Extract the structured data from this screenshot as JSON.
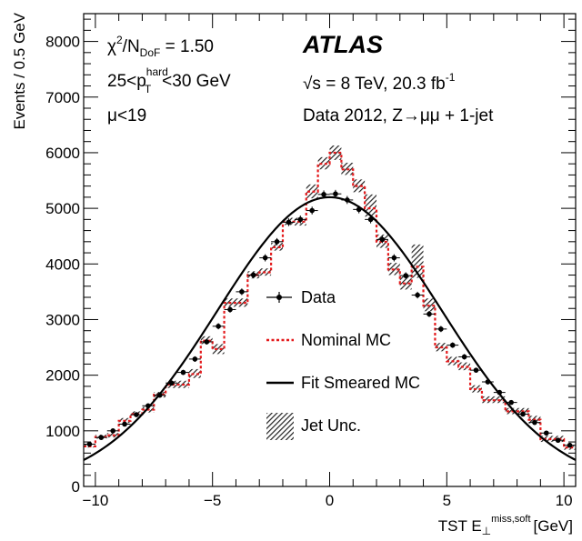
{
  "chart_data": {
    "type": "histogram",
    "xlabel_main": "TST E",
    "xlabel_sub": "⊥",
    "xlabel_sup": "miss,soft",
    "xlabel_unit": "[GeV]",
    "ylabel": "Events / 0.5 GeV",
    "xlim": [
      -10.5,
      10.5
    ],
    "ylim": [
      0,
      8500
    ],
    "x_ticks": [
      -10,
      -5,
      0,
      5,
      10
    ],
    "x_tick_labels": [
      "−10",
      "−5",
      "0",
      "5",
      "10"
    ],
    "y_ticks": [
      0,
      1000,
      2000,
      3000,
      4000,
      5000,
      6000,
      7000,
      8000
    ],
    "y_tick_labels": [
      "0",
      "1000",
      "2000",
      "3000",
      "4000",
      "5000",
      "6000",
      "7000",
      "8000"
    ],
    "bin_width": 0.5,
    "bin_centers": [
      -10.25,
      -9.75,
      -9.25,
      -8.75,
      -8.25,
      -7.75,
      -7.25,
      -6.75,
      -6.25,
      -5.75,
      -5.25,
      -4.75,
      -4.25,
      -3.75,
      -3.25,
      -2.75,
      -2.25,
      -1.75,
      -1.25,
      -0.75,
      -0.25,
      0.25,
      0.75,
      1.25,
      1.75,
      2.25,
      2.75,
      3.25,
      3.75,
      4.25,
      4.75,
      5.25,
      5.75,
      6.25,
      6.75,
      7.25,
      7.75,
      8.25,
      8.75,
      9.25,
      9.75,
      10.25
    ],
    "series": [
      {
        "name": "Data",
        "style": "points",
        "values": [
          760,
          880,
          1000,
          1120,
          1290,
          1450,
          1640,
          1860,
          2050,
          2290,
          2600,
          2880,
          3180,
          3500,
          3800,
          4110,
          4400,
          4750,
          4800,
          4960,
          5250,
          5260,
          5150,
          4980,
          4800,
          4440,
          4110,
          3790,
          3440,
          3100,
          2830,
          2540,
          2330,
          2090,
          1880,
          1690,
          1510,
          1300,
          1150,
          960,
          830,
          740
        ],
        "errors": [
          30,
          30,
          35,
          35,
          35,
          40,
          40,
          45,
          45,
          50,
          50,
          55,
          55,
          60,
          60,
          65,
          65,
          70,
          70,
          70,
          72,
          72,
          72,
          70,
          70,
          65,
          65,
          60,
          60,
          55,
          55,
          50,
          50,
          45,
          45,
          40,
          40,
          35,
          35,
          30,
          30,
          30
        ],
        "color": "#000000"
      },
      {
        "name": "Nominal MC",
        "style": "step",
        "values": [
          720,
          890,
          920,
          1180,
          1300,
          1380,
          1650,
          1830,
          1830,
          2020,
          2620,
          2470,
          3300,
          3300,
          3800,
          3850,
          4300,
          4760,
          4760,
          5300,
          5800,
          6000,
          5700,
          5400,
          5000,
          4400,
          3900,
          3650,
          3950,
          3250,
          2500,
          2250,
          2150,
          1750,
          1550,
          1550,
          1350,
          1350,
          1200,
          850,
          850,
          700
        ],
        "color": "#e41a1c"
      },
      {
        "name": "Fit Smeared MC",
        "style": "curve",
        "peak": 5200,
        "sigma": 4.8,
        "color": "#000000"
      },
      {
        "name": "Jet Unc.",
        "style": "band",
        "lo": [
          700,
          860,
          880,
          1140,
          1260,
          1330,
          1600,
          1770,
          1770,
          1950,
          2560,
          2380,
          3230,
          3230,
          3740,
          3790,
          4240,
          4700,
          4690,
          5180,
          5700,
          5870,
          5600,
          5290,
          4850,
          4290,
          3800,
          3540,
          3750,
          3150,
          2430,
          2180,
          2090,
          1690,
          1500,
          1500,
          1300,
          1300,
          1130,
          800,
          800,
          660
        ],
        "hi": [
          760,
          930,
          960,
          1230,
          1350,
          1430,
          1700,
          1900,
          1900,
          2110,
          2700,
          2560,
          3380,
          3380,
          3870,
          3920,
          4380,
          4830,
          4830,
          5430,
          5920,
          6130,
          5820,
          5520,
          5250,
          4530,
          4020,
          3780,
          4350,
          3380,
          2580,
          2330,
          2230,
          1820,
          1620,
          1620,
          1410,
          1410,
          1270,
          910,
          910,
          740
        ]
      }
    ],
    "legend": [
      {
        "label": "Data",
        "style": "points"
      },
      {
        "label": "Nominal MC",
        "style": "dashed-red"
      },
      {
        "label": "Fit Smeared MC",
        "style": "solid-black"
      },
      {
        "label": "Jet Unc.",
        "style": "hatched"
      }
    ],
    "legend_position": "center-right",
    "grid": false
  },
  "annotations": {
    "chi2_prefix": "χ",
    "chi2_sup": "2",
    "chi2_slash": "/N",
    "chi2_sub": "DoF",
    "chi2_value": " = 1.50",
    "pt_left": "25<p",
    "pt_sup": "hard",
    "pt_sub": "T",
    "pt_right": "<30 GeV",
    "mu": "μ<19",
    "atlas": "ATLAS",
    "energy_prefix": "√s = 8 TeV, 20.3 fb",
    "energy_sup": "-1",
    "dataset": "Data 2012, Z→μμ + 1-jet"
  }
}
